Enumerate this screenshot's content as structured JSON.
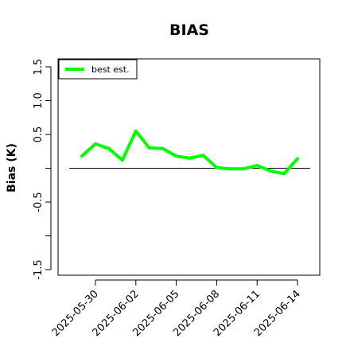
{
  "chart_data": {
    "type": "line",
    "title": "BIAS",
    "xlabel": "",
    "ylabel": "Bias (K)",
    "ylim": [
      -1.6,
      1.6
    ],
    "y_ticks": [
      -1.5,
      -1.0,
      -0.5,
      0.0,
      0.5,
      1.0,
      1.5
    ],
    "y_tick_labels": [
      "-1.5",
      "",
      "-0.5",
      "",
      "0.5",
      "1.0",
      "1.5"
    ],
    "x_ticks": [
      "2025-05-30",
      "2025-06-02",
      "2025-06-05",
      "2025-06-08",
      "2025-06-11",
      "2025-06-14"
    ],
    "reference_line": 0.0,
    "legend": {
      "placement": "top-left",
      "entries": [
        "best est."
      ]
    },
    "grid": false,
    "series": [
      {
        "name": "best est.",
        "color": "#00ff00",
        "x": [
          "2025-05-29",
          "2025-05-30",
          "2025-05-31",
          "2025-06-01",
          "2025-06-02",
          "2025-06-03",
          "2025-06-04",
          "2025-06-05",
          "2025-06-06",
          "2025-06-07",
          "2025-06-08",
          "2025-06-09",
          "2025-06-10",
          "2025-06-11",
          "2025-06-12",
          "2025-06-13",
          "2025-06-14"
        ],
        "values": [
          0.18,
          0.36,
          0.29,
          0.12,
          0.55,
          0.3,
          0.29,
          0.18,
          0.15,
          0.19,
          0.01,
          -0.01,
          -0.01,
          0.04,
          -0.04,
          -0.08,
          0.14
        ]
      }
    ]
  }
}
